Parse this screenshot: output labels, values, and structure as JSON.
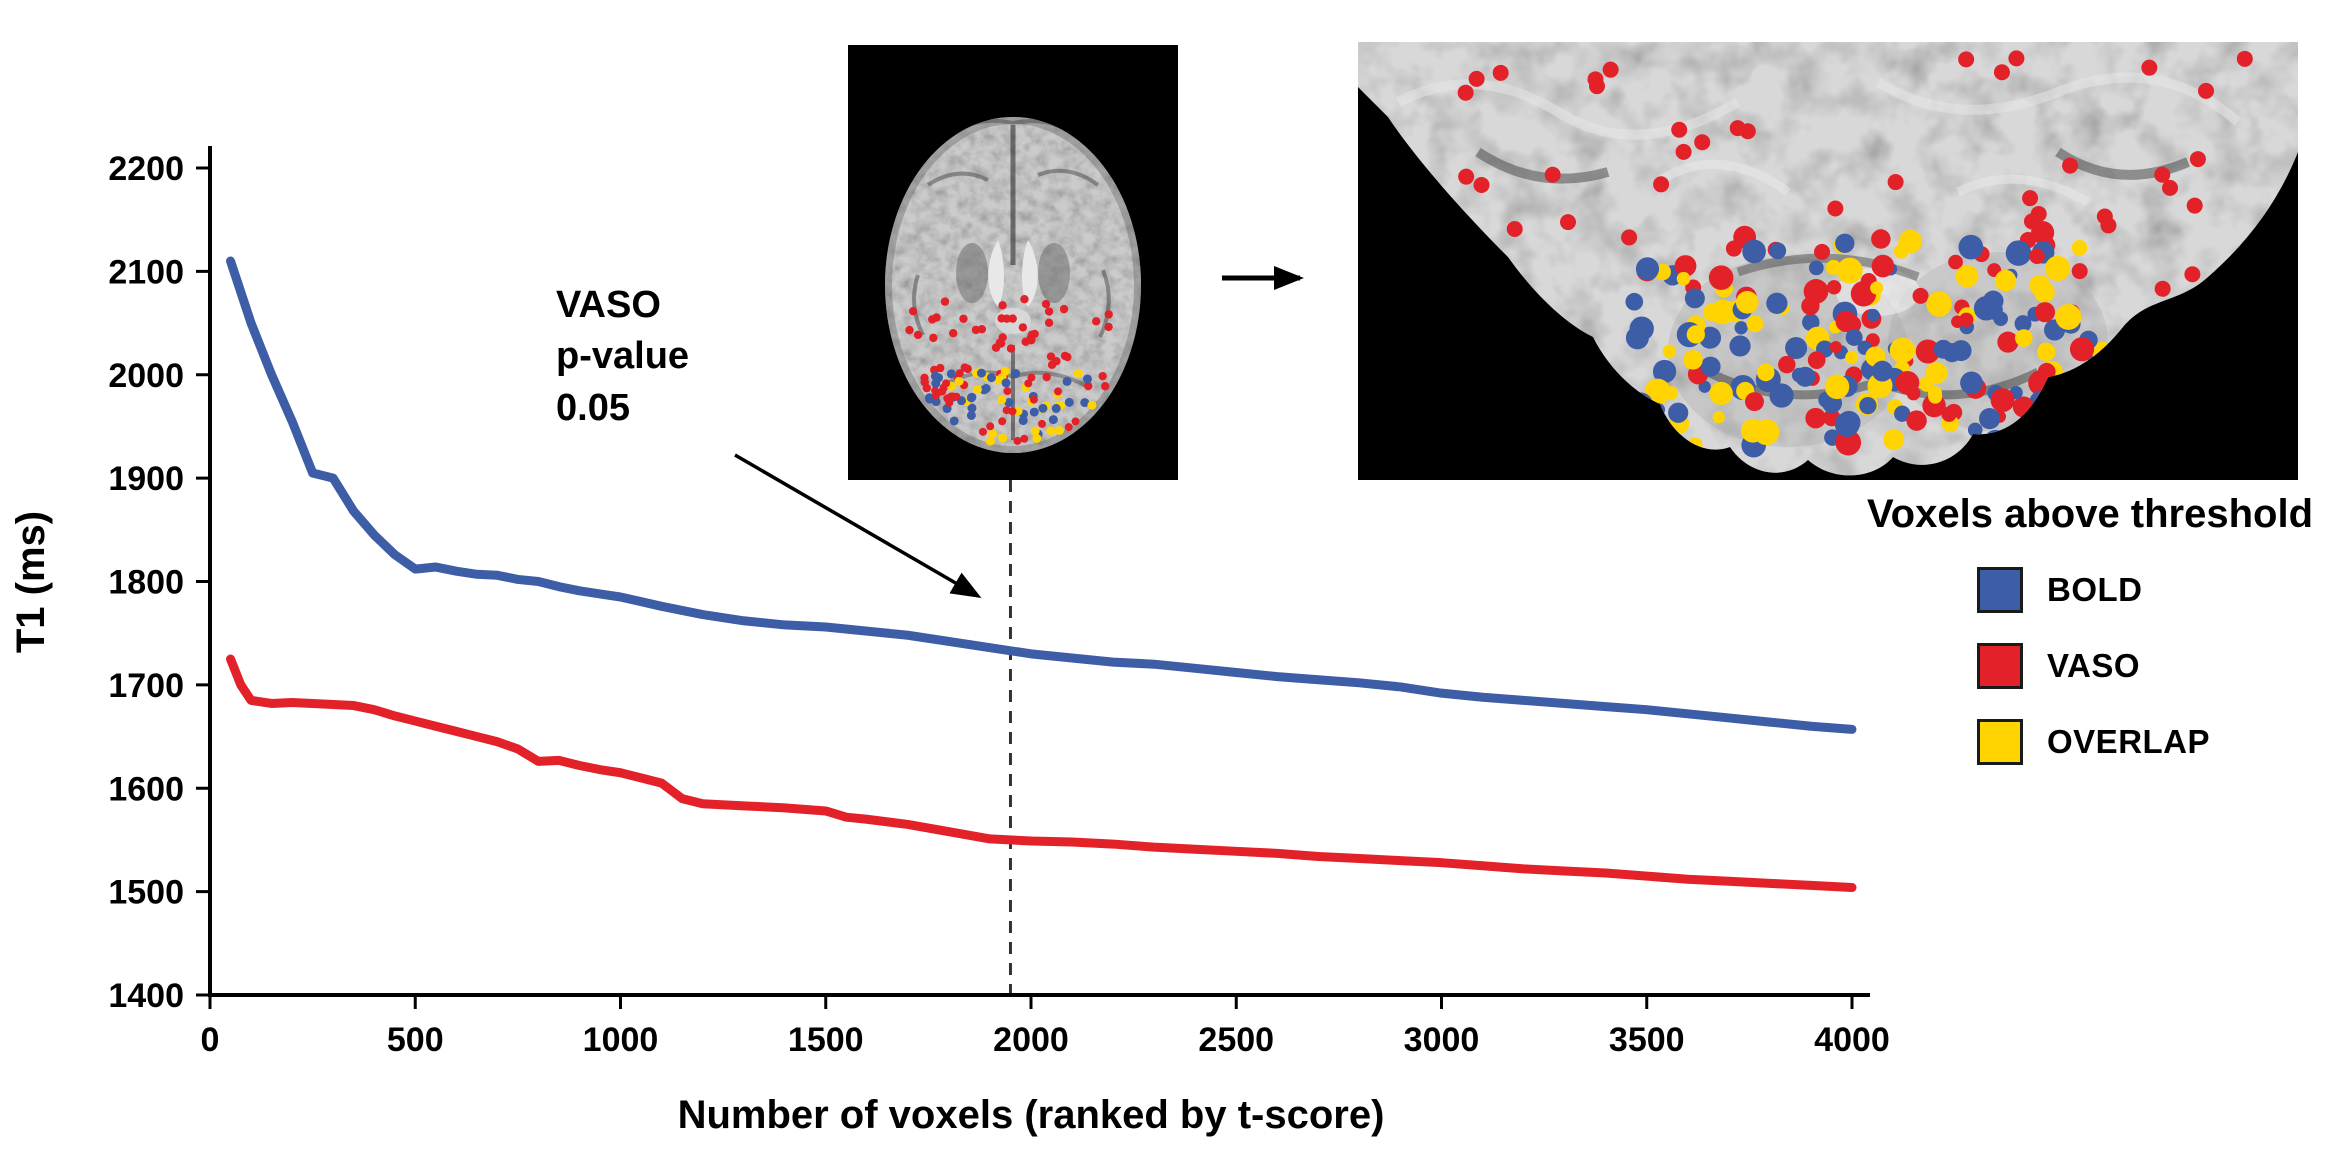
{
  "figure": {
    "background": "#ffffff"
  },
  "chart_data": {
    "type": "line",
    "title": "",
    "xlabel": "Number of voxels (ranked by t-score)",
    "ylabel": "T1 (ms)",
    "xlim": [
      0,
      4000
    ],
    "ylim": [
      1400,
      2200
    ],
    "xticks": [
      0,
      500,
      1000,
      1500,
      2000,
      2500,
      3000,
      3500,
      4000
    ],
    "yticks": [
      1400,
      1500,
      1600,
      1700,
      1800,
      1900,
      2000,
      2100,
      2200
    ],
    "grid": false,
    "legend_position": "right",
    "threshold_line": {
      "x": 1950,
      "style": "dashed",
      "label": "VASO\np-value\n0.05"
    },
    "series": [
      {
        "name": "BOLD",
        "color": "#3d5da7",
        "x": [
          50,
          100,
          150,
          200,
          250,
          300,
          350,
          400,
          450,
          500,
          550,
          600,
          650,
          700,
          750,
          800,
          850,
          900,
          950,
          1000,
          1100,
          1200,
          1300,
          1400,
          1500,
          1600,
          1700,
          1800,
          1900,
          2000,
          2100,
          2200,
          2300,
          2400,
          2500,
          2600,
          2700,
          2800,
          2900,
          3000,
          3100,
          3200,
          3300,
          3400,
          3500,
          3600,
          3700,
          3800,
          3900,
          4000
        ],
        "y": [
          2110,
          2050,
          2000,
          1955,
          1905,
          1900,
          1868,
          1845,
          1826,
          1812,
          1814,
          1810,
          1807,
          1806,
          1802,
          1800,
          1795,
          1791,
          1788,
          1785,
          1776,
          1768,
          1762,
          1758,
          1756,
          1752,
          1748,
          1742,
          1736,
          1730,
          1726,
          1722,
          1720,
          1716,
          1712,
          1708,
          1705,
          1702,
          1698,
          1692,
          1688,
          1685,
          1682,
          1679,
          1676,
          1672,
          1668,
          1664,
          1660,
          1657
        ]
      },
      {
        "name": "VASO",
        "color": "#e32128",
        "x": [
          50,
          75,
          100,
          150,
          200,
          250,
          300,
          350,
          400,
          450,
          500,
          550,
          600,
          650,
          700,
          750,
          800,
          850,
          900,
          950,
          1000,
          1050,
          1100,
          1150,
          1200,
          1300,
          1400,
          1500,
          1550,
          1600,
          1700,
          1800,
          1900,
          2000,
          2100,
          2200,
          2300,
          2400,
          2500,
          2600,
          2700,
          2800,
          2900,
          3000,
          3100,
          3200,
          3300,
          3400,
          3500,
          3600,
          3700,
          3800,
          3900,
          4000
        ],
        "y": [
          1725,
          1700,
          1685,
          1682,
          1683,
          1682,
          1681,
          1680,
          1676,
          1670,
          1665,
          1660,
          1655,
          1650,
          1645,
          1638,
          1626,
          1627,
          1622,
          1618,
          1615,
          1610,
          1605,
          1590,
          1585,
          1583,
          1581,
          1578,
          1572,
          1570,
          1565,
          1558,
          1551,
          1549,
          1548,
          1546,
          1543,
          1541,
          1539,
          1537,
          1534,
          1532,
          1530,
          1528,
          1525,
          1522,
          1520,
          1518,
          1515,
          1512,
          1510,
          1508,
          1506,
          1504
        ]
      }
    ]
  },
  "legend": {
    "title": "Voxels above threshold",
    "items": [
      {
        "label": "BOLD",
        "color": "#3d5da7"
      },
      {
        "label": "VASO",
        "color": "#e32128"
      },
      {
        "label": "OVERLAP",
        "color": "#ffd400"
      }
    ]
  },
  "images": {
    "inset": {
      "name": "axial-brain-slice-with-thresholded-voxels"
    },
    "zoom": {
      "name": "zoomed-occipital-cortex-with-thresholded-voxels"
    }
  }
}
